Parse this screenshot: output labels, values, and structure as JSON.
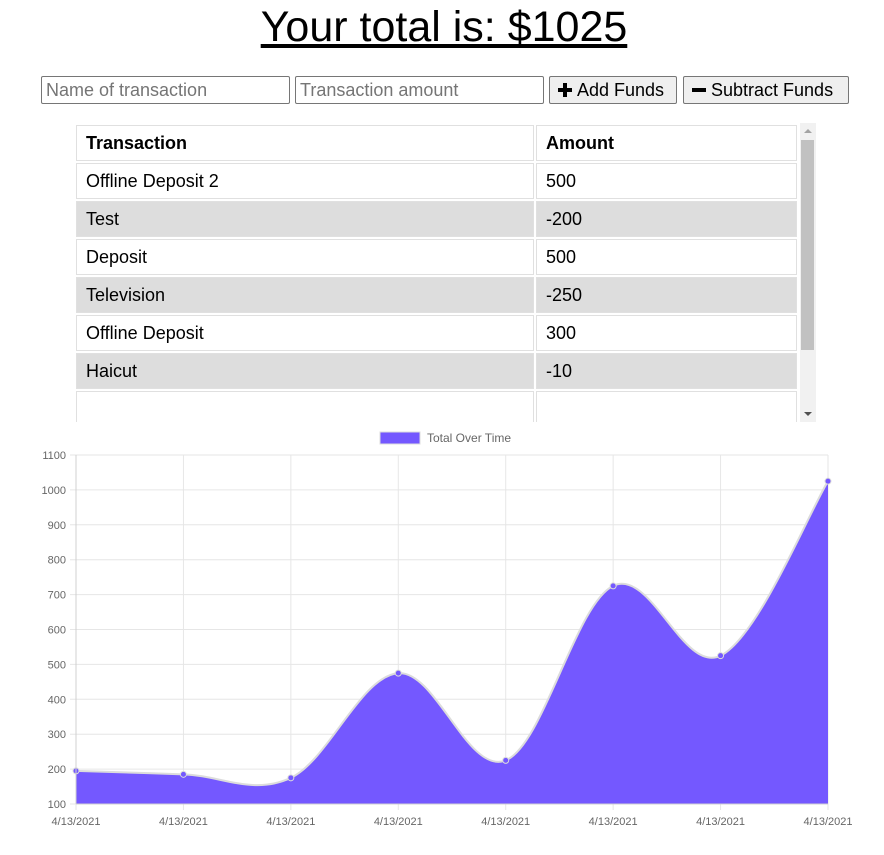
{
  "header": {
    "total_label": "Your total is: $1025"
  },
  "form": {
    "name_placeholder": "Name of transaction",
    "amount_placeholder": "Transaction amount",
    "add_label": "Add Funds",
    "subtract_label": "Subtract Funds"
  },
  "table": {
    "headers": [
      "Transaction",
      "Amount"
    ],
    "rows": [
      {
        "name": "Offline Deposit 2",
        "amount": "500"
      },
      {
        "name": "Test",
        "amount": "-200"
      },
      {
        "name": "Deposit",
        "amount": "500"
      },
      {
        "name": "Television",
        "amount": "-250"
      },
      {
        "name": "Offline Deposit",
        "amount": "300"
      },
      {
        "name": "Haicut",
        "amount": "-10"
      }
    ]
  },
  "chart_data": {
    "type": "area",
    "x": [
      "4/13/2021",
      "4/13/2021",
      "4/13/2021",
      "4/13/2021",
      "4/13/2021",
      "4/13/2021",
      "4/13/2021",
      "4/13/2021"
    ],
    "series": [
      {
        "name": "Total Over Time",
        "values": [
          195,
          185,
          175,
          475,
          225,
          725,
          525,
          1025
        ]
      }
    ],
    "ylim": [
      100,
      1100
    ],
    "yticks": [
      100,
      200,
      300,
      400,
      500,
      600,
      700,
      800,
      900,
      1000,
      1100
    ],
    "grid": true,
    "legend_position": "top",
    "colors": {
      "fill": "#7458ff",
      "border": "#dcdcdc",
      "grid": "#e6e6e6"
    }
  }
}
